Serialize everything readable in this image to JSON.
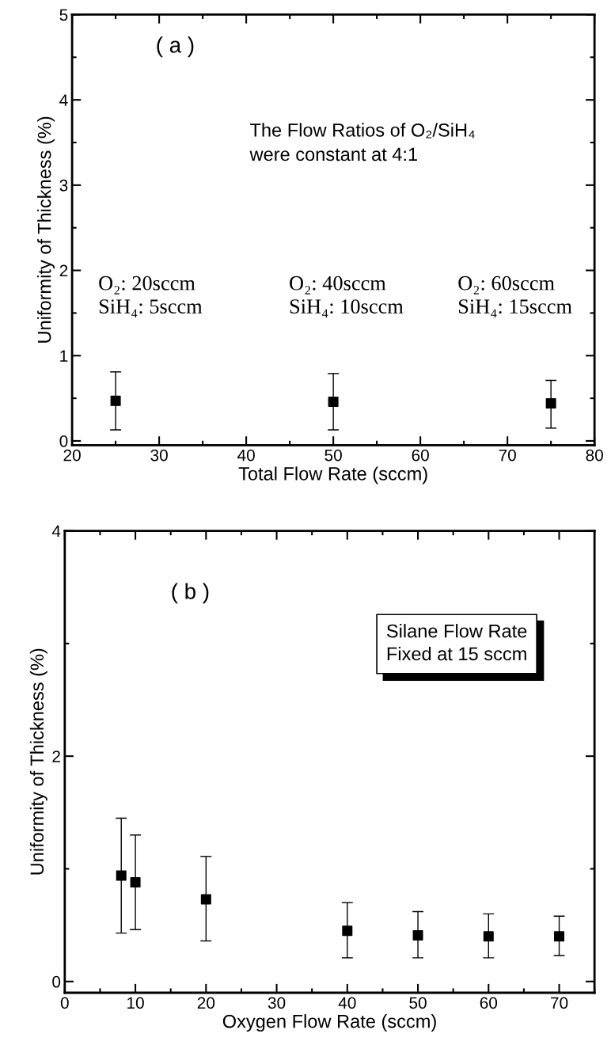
{
  "chart_data": [
    {
      "type": "scatter",
      "xlabel": "Total Flow Rate (sccm)",
      "ylabel": "Uniformity of Thickness (%)",
      "x": [
        25,
        50,
        75
      ],
      "series": [
        {
          "color": "#000000",
          "marker": "square",
          "values": [
            0.47,
            0.46,
            0.44
          ],
          "errors": [
            [
              0.13,
              0.81
            ],
            [
              0.13,
              0.79
            ],
            [
              0.15,
              0.71
            ]
          ]
        }
      ],
      "xlim": [
        20,
        80
      ],
      "xticks": [
        20,
        30,
        40,
        50,
        60,
        70,
        80
      ],
      "ylim": [
        -0.05,
        5
      ],
      "yticks": [
        0,
        1,
        2,
        3,
        4,
        5
      ],
      "grid": false,
      "legend": false,
      "annotations": [
        "( a )",
        "The Flow Ratios of O₂/SiH₄\nwere constant at 4:1",
        "O₂: 20sccm\nSiH₄: 5sccm",
        "O₂: 40sccm\nSiH₄: 10sccm",
        "O₂: 60sccm\nSiH₄: 15sccm"
      ]
    },
    {
      "type": "scatter",
      "xlabel": "Oxygen Flow Rate (sccm)",
      "ylabel": "Uniformity of Thickness (%)",
      "x": [
        8,
        10,
        20,
        40,
        50,
        60,
        70
      ],
      "series": [
        {
          "color": "#000000",
          "marker": "square",
          "values": [
            0.94,
            0.88,
            0.73,
            0.45,
            0.41,
            0.4,
            0.4
          ],
          "errors": [
            [
              0.43,
              1.45
            ],
            [
              0.46,
              1.3
            ],
            [
              0.36,
              1.11
            ],
            [
              0.21,
              0.7
            ],
            [
              0.21,
              0.62
            ],
            [
              0.21,
              0.6
            ],
            [
              0.23,
              0.58
            ]
          ]
        }
      ],
      "xlim": [
        0,
        75
      ],
      "xticks": [
        0,
        10,
        20,
        30,
        40,
        50,
        60,
        70
      ],
      "ylim": [
        -0.1,
        4
      ],
      "yticks": [
        0,
        2,
        4
      ],
      "grid": false,
      "legend": false,
      "annotations": [
        "( b )",
        "Silane Flow Rate\nFixed at 15 sccm"
      ]
    }
  ]
}
